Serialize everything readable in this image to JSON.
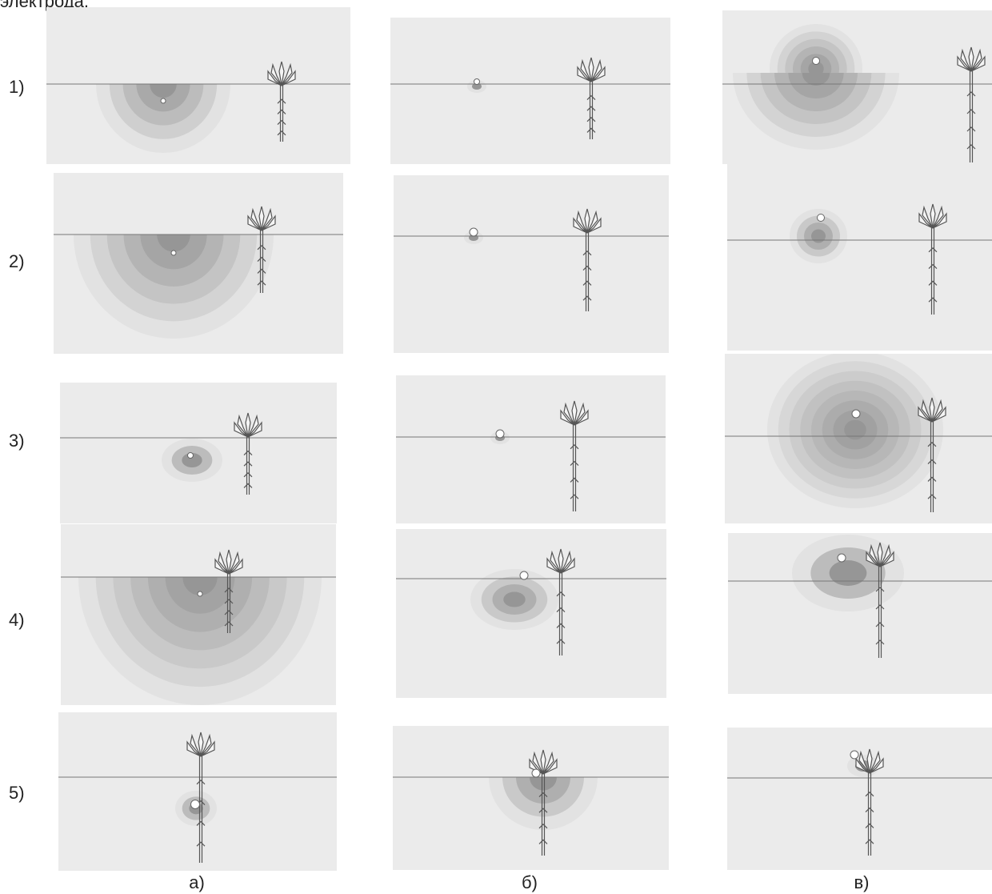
{
  "caption": "электрода.",
  "row_labels": [
    "1)",
    "2)",
    "3)",
    "4)",
    "5)"
  ],
  "column_labels": [
    "а)",
    "б)",
    "в)"
  ]
}
